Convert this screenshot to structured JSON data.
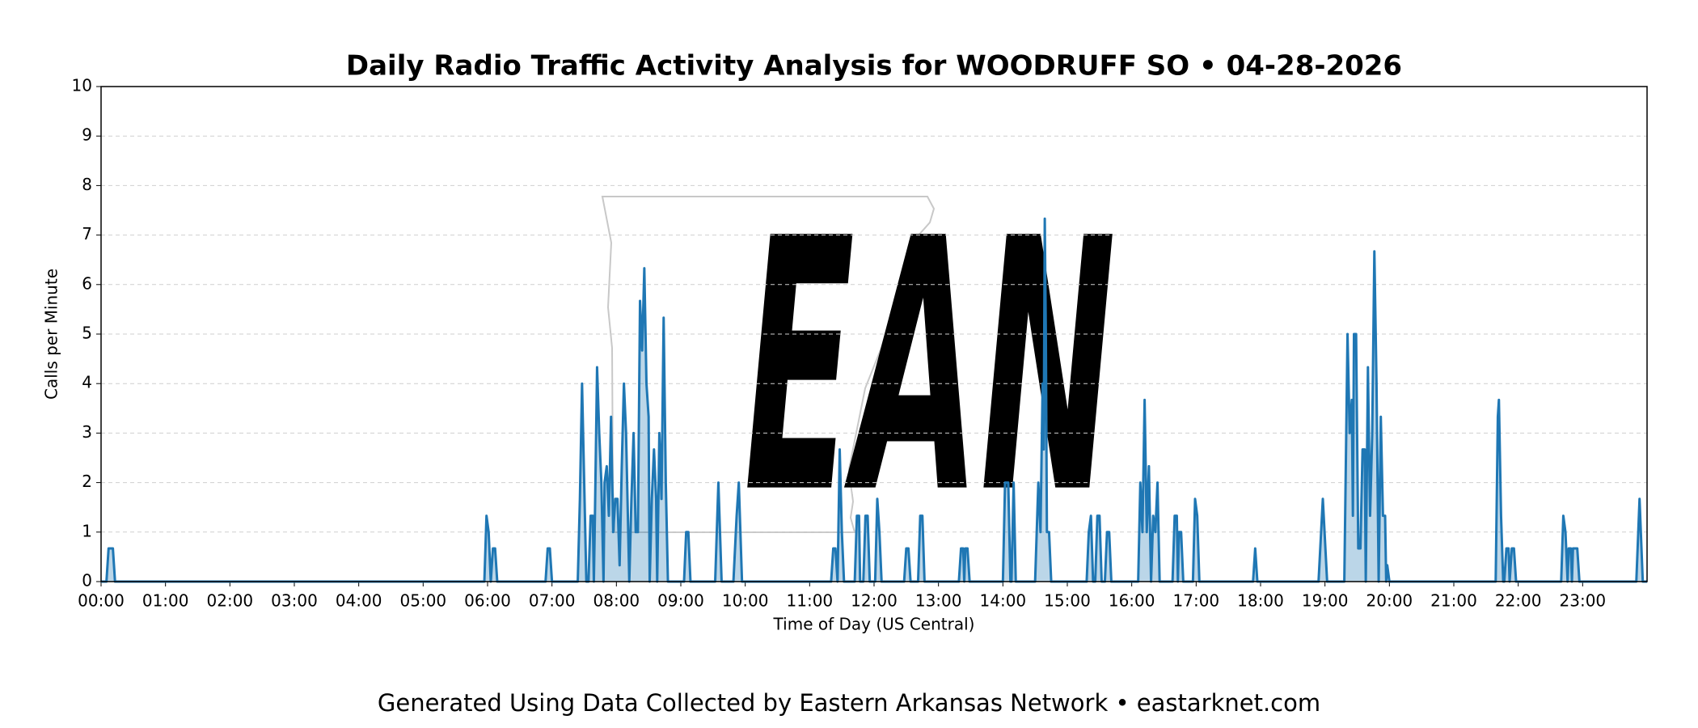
{
  "chart_data": {
    "type": "line",
    "title": "Daily Radio Traffic Activity Analysis for WOODRUFF SO • 04-28-2026",
    "xlabel": "Time of Day (US Central)",
    "ylabel": "Calls per Minute",
    "footer": "Generated Using Data Collected by Eastern Arkansas Network • eastarknet.com",
    "watermark": "EAN",
    "color": "#1f77b4",
    "fill": true,
    "grid": true,
    "xlim": [
      0,
      1440
    ],
    "ylim": [
      0,
      10
    ],
    "yticks": [
      0,
      1,
      2,
      3,
      4,
      5,
      6,
      7,
      8,
      9,
      10
    ],
    "xticks": [
      {
        "value": 0,
        "label": "00:00"
      },
      {
        "value": 60,
        "label": "01:00"
      },
      {
        "value": 120,
        "label": "02:00"
      },
      {
        "value": 180,
        "label": "03:00"
      },
      {
        "value": 240,
        "label": "04:00"
      },
      {
        "value": 300,
        "label": "05:00"
      },
      {
        "value": 360,
        "label": "06:00"
      },
      {
        "value": 420,
        "label": "07:00"
      },
      {
        "value": 480,
        "label": "08:00"
      },
      {
        "value": 540,
        "label": "09:00"
      },
      {
        "value": 600,
        "label": "10:00"
      },
      {
        "value": 660,
        "label": "11:00"
      },
      {
        "value": 720,
        "label": "12:00"
      },
      {
        "value": 780,
        "label": "13:00"
      },
      {
        "value": 840,
        "label": "14:00"
      },
      {
        "value": 900,
        "label": "15:00"
      },
      {
        "value": 960,
        "label": "16:00"
      },
      {
        "value": 1020,
        "label": "17:00"
      },
      {
        "value": 1080,
        "label": "18:00"
      },
      {
        "value": 1140,
        "label": "19:00"
      },
      {
        "value": 1200,
        "label": "20:00"
      },
      {
        "value": 1260,
        "label": "21:00"
      },
      {
        "value": 1320,
        "label": "22:00"
      },
      {
        "value": 1380,
        "label": "23:00"
      }
    ],
    "x": [
      0,
      5,
      7,
      11,
      13,
      357,
      359,
      361,
      363,
      365,
      367,
      369,
      414,
      416,
      418,
      420,
      444,
      446,
      448,
      450,
      452,
      454,
      456,
      458,
      459,
      460,
      462,
      464,
      466,
      468,
      469,
      471,
      473,
      475,
      477,
      479,
      481,
      483,
      485,
      487,
      489,
      491,
      492,
      494,
      496,
      498,
      500,
      502,
      504,
      506,
      508,
      510,
      511,
      513,
      515,
      517,
      518,
      520,
      522,
      524,
      526,
      528,
      543,
      545,
      547,
      549,
      572,
      575,
      578,
      589,
      592,
      594,
      597,
      680,
      682,
      684,
      686,
      688,
      690,
      692,
      702,
      704,
      706,
      707,
      710,
      712,
      714,
      716,
      721,
      723,
      725,
      727,
      748,
      750,
      752,
      754,
      761,
      763,
      765,
      767,
      799,
      801,
      803,
      804,
      805,
      807,
      809,
      840,
      842,
      845,
      847,
      848,
      850,
      852,
      870,
      873,
      875,
      877,
      878,
      879,
      880,
      881,
      883,
      885,
      918,
      920,
      922,
      924,
      926,
      928,
      930,
      932,
      935,
      937,
      939,
      941,
      966,
      968,
      970,
      972,
      974,
      976,
      978,
      980,
      982,
      984,
      986,
      998,
      1000,
      1002,
      1003,
      1004,
      1006,
      1008,
      1017,
      1019,
      1021,
      1023,
      1073,
      1075,
      1077,
      1134,
      1138,
      1142,
      1158,
      1161,
      1163,
      1165,
      1166,
      1167,
      1169,
      1171,
      1173,
      1175,
      1177,
      1178,
      1180,
      1182,
      1184,
      1186,
      1188,
      1190,
      1192,
      1194,
      1196,
      1197,
      1198,
      1200,
      1299,
      1301,
      1302,
      1304,
      1306,
      1307,
      1309,
      1311,
      1312,
      1314,
      1316,
      1318,
      1360,
      1362,
      1364,
      1366,
      1367,
      1369,
      1370,
      1371,
      1373,
      1375,
      1377,
      1430,
      1433,
      1436,
      1440
    ],
    "values": [
      0,
      0,
      0.67,
      0.67,
      0,
      0,
      1.33,
      1,
      0,
      0.67,
      0.67,
      0,
      0,
      0.67,
      0.67,
      0,
      0,
      1.67,
      4,
      2,
      0,
      0,
      1.33,
      1.33,
      0,
      1.33,
      4.33,
      3,
      2,
      0,
      2,
      2.33,
      1.33,
      3.33,
      1,
      1.67,
      1.67,
      0.33,
      2.33,
      4,
      3,
      1,
      0,
      1.67,
      3,
      1,
      1,
      5.67,
      4.67,
      6.33,
      4,
      3.33,
      0,
      1.67,
      2.67,
      1.67,
      0,
      3,
      1.67,
      5.33,
      2,
      0,
      0,
      1,
      1,
      0,
      0,
      2,
      0,
      0,
      1.33,
      2,
      0,
      0,
      0.67,
      0.67,
      0,
      2.67,
      1,
      0,
      0,
      1.33,
      1.33,
      0,
      0,
      1.33,
      1.33,
      0,
      0,
      1.67,
      1,
      0,
      0,
      0.67,
      0.67,
      0,
      0,
      1.33,
      1.33,
      0,
      0,
      0.67,
      0.67,
      0,
      0.67,
      0.67,
      0,
      0,
      2,
      2,
      0,
      0,
      2,
      0,
      0,
      2,
      1,
      4,
      2.67,
      7.33,
      5,
      1,
      1,
      0,
      0,
      1,
      1.33,
      0,
      0,
      1.33,
      1.33,
      0,
      0,
      1,
      1,
      0,
      0,
      2,
      1,
      3.67,
      1,
      2.33,
      0,
      1.33,
      1,
      2,
      0,
      0,
      1.33,
      1.33,
      0,
      1,
      1,
      0,
      0,
      1.67,
      1.33,
      0,
      0,
      0.67,
      0,
      0,
      1.67,
      0,
      0,
      5,
      3,
      3.67,
      1.33,
      5,
      5,
      0.67,
      0.67,
      2.67,
      2.67,
      0,
      4.33,
      1.33,
      3,
      6.67,
      4,
      0,
      3.33,
      1.33,
      1.33,
      0,
      0.33,
      0,
      0,
      3.33,
      3.67,
      1.33,
      0,
      0,
      0.67,
      0.67,
      0,
      0.67,
      0.67,
      0,
      0,
      1.33,
      1,
      0,
      0.67,
      0.67,
      0,
      0.67,
      0.67,
      0.67,
      0,
      0,
      1.67,
      0,
      0
    ]
  }
}
